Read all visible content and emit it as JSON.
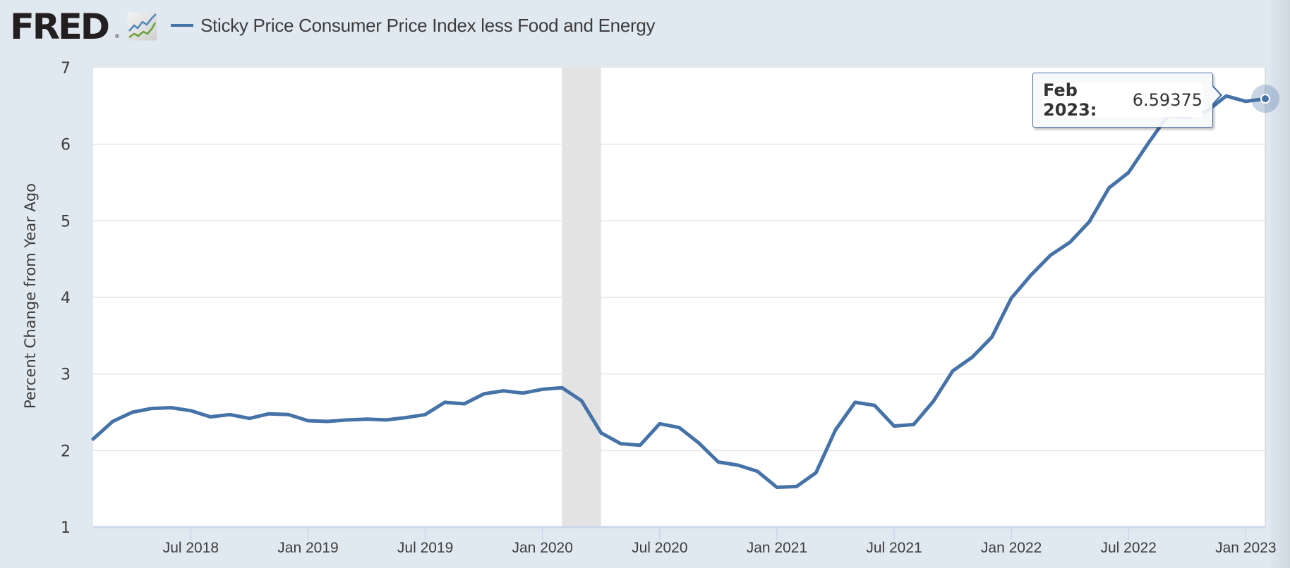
{
  "header": {
    "logo": "FRED",
    "logo_reg": "®",
    "logo_icon": "chart-lines-icon",
    "legend_label": "Sticky Price Consumer Price Index less Food and Energy"
  },
  "tooltip": {
    "date": "Feb 2023:",
    "value": "6.59375"
  },
  "colors": {
    "series": "#4572a7",
    "background": "#e1e9f0",
    "recession": "#e3e3e3",
    "grid": "#e6e6e6"
  },
  "chart_data": {
    "type": "line",
    "title": "Sticky Price Consumer Price Index less Food and Energy",
    "xlabel": "",
    "ylabel": "Percent Change from Year Ago",
    "ylim": [
      1,
      7
    ],
    "yticks": [
      "1",
      "2",
      "3",
      "4",
      "5",
      "6",
      "7"
    ],
    "grid": true,
    "legend": "top-left",
    "x_start": "2018-02",
    "x_end": "2023-02",
    "xticks": [
      {
        "label": "Jul 2018",
        "month_index": 5
      },
      {
        "label": "Jan 2019",
        "month_index": 11
      },
      {
        "label": "Jul 2019",
        "month_index": 17
      },
      {
        "label": "Jan 2020",
        "month_index": 23
      },
      {
        "label": "Jul 2020",
        "month_index": 29
      },
      {
        "label": "Jan 2021",
        "month_index": 35
      },
      {
        "label": "Jul 2021",
        "month_index": 41
      },
      {
        "label": "Jan 2022",
        "month_index": 47
      },
      {
        "label": "Jul 2022",
        "month_index": 53
      },
      {
        "label": "Jan 2023",
        "month_index": 59
      }
    ],
    "recessions": [
      {
        "start_month_index": 24,
        "end_month_index": 26,
        "label": "Feb 2020 – Apr 2020"
      }
    ],
    "series": [
      {
        "name": "Sticky Price Consumer Price Index less Food and Energy",
        "x": [
          "2018-02",
          "2018-03",
          "2018-04",
          "2018-05",
          "2018-06",
          "2018-07",
          "2018-08",
          "2018-09",
          "2018-10",
          "2018-11",
          "2018-12",
          "2019-01",
          "2019-02",
          "2019-03",
          "2019-04",
          "2019-05",
          "2019-06",
          "2019-07",
          "2019-08",
          "2019-09",
          "2019-10",
          "2019-11",
          "2019-12",
          "2020-01",
          "2020-02",
          "2020-03",
          "2020-04",
          "2020-05",
          "2020-06",
          "2020-07",
          "2020-08",
          "2020-09",
          "2020-10",
          "2020-11",
          "2020-12",
          "2021-01",
          "2021-02",
          "2021-03",
          "2021-04",
          "2021-05",
          "2021-06",
          "2021-07",
          "2021-08",
          "2021-09",
          "2021-10",
          "2021-11",
          "2021-12",
          "2022-01",
          "2022-02",
          "2022-03",
          "2022-04",
          "2022-05",
          "2022-06",
          "2022-07",
          "2022-08",
          "2022-09",
          "2022-10",
          "2022-11",
          "2022-12",
          "2023-01",
          "2023-02"
        ],
        "values": [
          2.15,
          2.38,
          2.5,
          2.55,
          2.56,
          2.52,
          2.44,
          2.47,
          2.42,
          2.48,
          2.47,
          2.39,
          2.38,
          2.4,
          2.41,
          2.4,
          2.43,
          2.47,
          2.63,
          2.61,
          2.74,
          2.78,
          2.75,
          2.8,
          2.82,
          2.65,
          2.23,
          2.09,
          2.07,
          2.35,
          2.3,
          2.1,
          1.85,
          1.81,
          1.73,
          1.52,
          1.53,
          1.71,
          2.27,
          2.63,
          2.59,
          2.32,
          2.34,
          2.64,
          3.04,
          3.22,
          3.48,
          3.99,
          4.29,
          4.55,
          4.72,
          4.99,
          5.43,
          5.63,
          6.01,
          6.37,
          6.35,
          6.43,
          6.63,
          6.56,
          6.59375
        ]
      }
    ],
    "highlighted_point": {
      "x": "2023-02",
      "y": 6.59375
    }
  }
}
